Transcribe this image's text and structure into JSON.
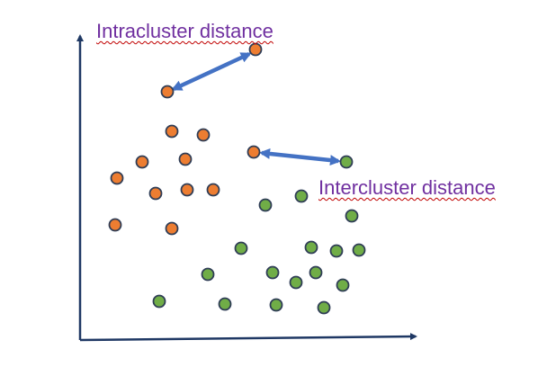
{
  "labels": {
    "intracluster": "Intracluster distance",
    "intercluster": "Intercluster distance"
  },
  "colors": {
    "label_text": "#7030a0",
    "label_underline": "#c00000",
    "axis": "#1f3864",
    "arrow": "#4472c4",
    "cluster_a_fill": "#ed7d31",
    "cluster_a_stroke": "#2f3d56",
    "cluster_b_fill": "#70ad47",
    "cluster_b_stroke": "#2f3d56"
  },
  "chart_data": {
    "type": "scatter",
    "series": [
      {
        "points": [
          [
            284,
            55
          ],
          [
            186,
            102
          ],
          [
            191,
            146
          ],
          [
            226,
            150
          ],
          [
            158,
            180
          ],
          [
            206,
            177
          ],
          [
            282,
            169
          ],
          [
            130,
            198
          ],
          [
            173,
            215
          ],
          [
            208,
            211
          ],
          [
            237,
            211
          ],
          [
            128,
            250
          ],
          [
            191,
            254
          ]
        ]
      },
      {
        "points": [
          [
            385,
            180
          ],
          [
            295,
            228
          ],
          [
            335,
            218
          ],
          [
            391,
            240
          ],
          [
            268,
            276
          ],
          [
            346,
            275
          ],
          [
            374,
            279
          ],
          [
            399,
            278
          ],
          [
            231,
            305
          ],
          [
            303,
            303
          ],
          [
            351,
            303
          ],
          [
            329,
            314
          ],
          [
            381,
            317
          ],
          [
            177,
            335
          ],
          [
            250,
            338
          ],
          [
            307,
            339
          ],
          [
            360,
            342
          ]
        ]
      }
    ]
  }
}
